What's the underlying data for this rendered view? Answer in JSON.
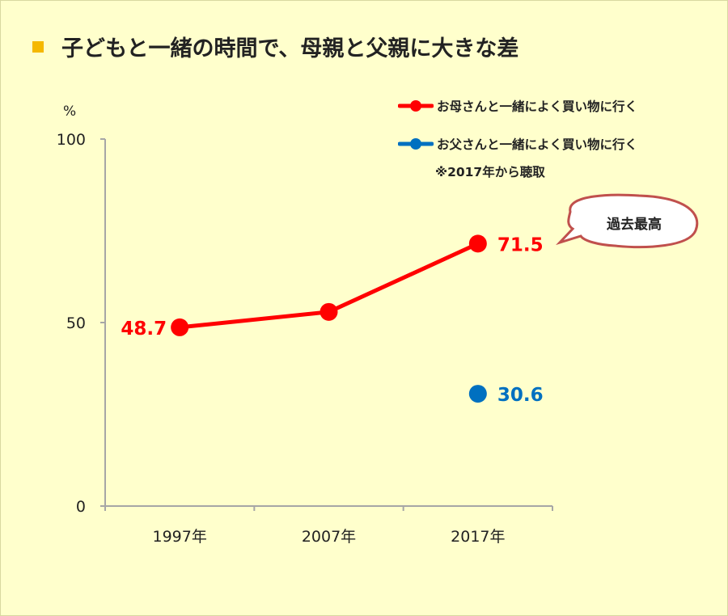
{
  "title": "子どもと一緒の時間で、母親と父親に大きな差",
  "colors": {
    "mother": "#ff0000",
    "father": "#0070c0",
    "accent": "#f5b800",
    "axis": "#a6a6a6"
  },
  "chart_data": {
    "type": "line",
    "title": "子どもと一緒の時間で、母親と父親に大きな差",
    "ylabel": "%",
    "xlabel": "",
    "ylim": [
      0,
      100
    ],
    "yticks": [
      "0",
      "50",
      "100"
    ],
    "categories": [
      "1997年",
      "2007年",
      "2017年"
    ],
    "series": [
      {
        "name": "お母さんと一緒によく買い物に行く",
        "values": [
          48.7,
          52.9,
          71.5
        ],
        "labels": [
          "48.7",
          "",
          "71.5"
        ]
      },
      {
        "name": "お父さんと一緒によく買い物に行く",
        "values": [
          null,
          null,
          30.6
        ],
        "labels": [
          "",
          "",
          "30.6"
        ]
      }
    ],
    "note": "※2017年から聴取",
    "annotation": "過去最高",
    "legend": "top-right",
    "grid": false
  }
}
